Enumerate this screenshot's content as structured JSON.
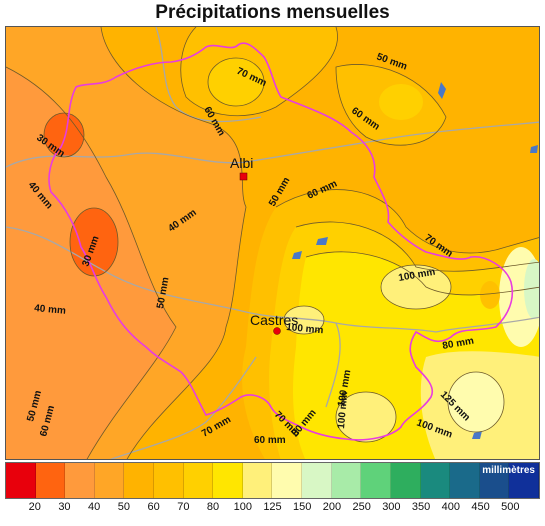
{
  "title": "Précipitations mensuelles",
  "cities": [
    {
      "name": "Albi",
      "marker": "square"
    },
    {
      "name": "Castres",
      "marker": "circle"
    }
  ],
  "contour_labels": [
    "70 mm",
    "60 mm",
    "50 mm",
    "60 mm",
    "30 mm",
    "40 mm",
    "40 mm",
    "50 mm",
    "60 mm",
    "70 mm",
    "30 mm",
    "50 mm",
    "100 mm",
    "40 mm",
    "100 mm",
    "80 mm",
    "125 mm",
    "100 mm",
    "50 mm",
    "60 mm",
    "70 mm",
    "60 mm",
    "70 mm",
    "80 mm",
    "100 mm",
    "100 mm"
  ],
  "legend": {
    "unit": "millimètres",
    "ticks": [
      "20",
      "30",
      "40",
      "50",
      "60",
      "70",
      "80",
      "100",
      "125",
      "150",
      "200",
      "250",
      "300",
      "350",
      "400",
      "450",
      "500"
    ],
    "colors": [
      "#e8000c",
      "#ff6410",
      "#ff9a3c",
      "#ffa626",
      "#ffb300",
      "#ffc000",
      "#ffd000",
      "#ffe600",
      "#fff07a",
      "#fffcae",
      "#d8f7c5",
      "#a8eba8",
      "#5fd27a",
      "#2eae5e",
      "#1a8a7e",
      "#1a6a8a",
      "#1a4e8c",
      "#10309a"
    ]
  }
}
